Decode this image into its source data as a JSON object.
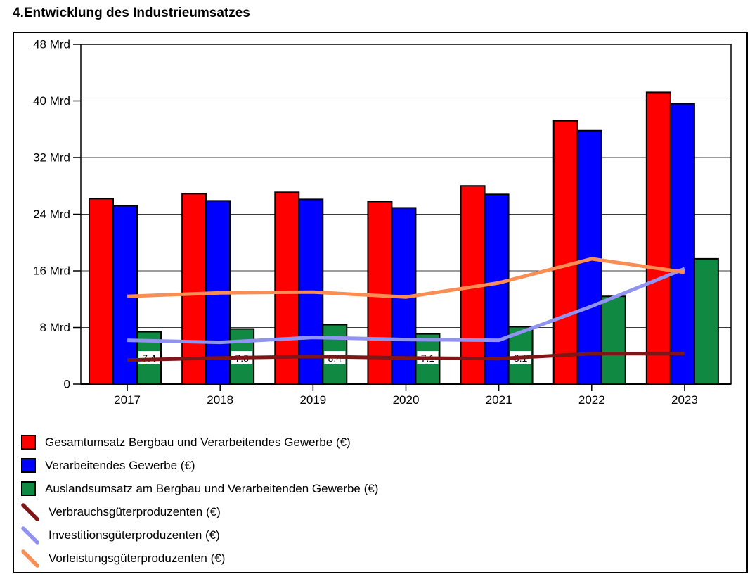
{
  "page_title": "4.Entwicklung des Industrieumsatzes",
  "chart_data": {
    "type": "bar",
    "subtype": "grouped-bars-with-line-overlays",
    "title": "4.Entwicklung des Industrieumsatzes",
    "xlabel": "",
    "ylabel": "",
    "unit": "Mrd",
    "categories": [
      "2017",
      "2018",
      "2019",
      "2020",
      "2021",
      "2022",
      "2023"
    ],
    "ylim": [
      0,
      48
    ],
    "ytick_step": 8,
    "ytick_labels": [
      "0",
      "8 Mrd",
      "16 Mrd",
      "24 Mrd",
      "32 Mrd",
      "40 Mrd",
      "48 Mrd"
    ],
    "grid": true,
    "legend_position": "bottom-left",
    "series": [
      {
        "name": "Gesamtumsatz Bergbau und Verarbeitendes Gewerbe (€)",
        "type": "bar",
        "color": "#FF0000",
        "values": [
          26.2,
          26.9,
          27.1,
          25.8,
          28.0,
          37.2,
          41.2
        ]
      },
      {
        "name": "Verarbeitendes Gewerbe (€)",
        "type": "bar",
        "color": "#0000FF",
        "values": [
          25.2,
          25.9,
          26.1,
          24.9,
          26.8,
          35.8,
          39.6
        ]
      },
      {
        "name": "Auslandsumsatz am Bergbau und Verarbeitenden Gewerbe (€)",
        "type": "bar",
        "color": "#108A42",
        "values": [
          7.4,
          7.8,
          8.4,
          7.1,
          8.1,
          12.4,
          17.7
        ],
        "data_labels": [
          "7.4",
          "7.8",
          "8.4",
          "7.1",
          "8.1",
          "",
          ""
        ]
      },
      {
        "name": "Verbrauchsgüterproduzenten (€)",
        "type": "line",
        "color": "#7E1517",
        "values": [
          3.4,
          3.7,
          3.9,
          3.7,
          3.6,
          4.3,
          4.3
        ]
      },
      {
        "name": "Investitionsgüterproduzenten (€)",
        "type": "line",
        "color": "#9193F2",
        "values": [
          6.2,
          5.9,
          6.6,
          6.3,
          6.2,
          11.0,
          16.3
        ]
      },
      {
        "name": "Vorleistungsgüterproduzenten (€)",
        "type": "line",
        "color": "#F98D53",
        "values": [
          12.4,
          12.9,
          13.0,
          12.3,
          14.3,
          17.7,
          15.8
        ]
      }
    ],
    "colors": {
      "grid": "#3A3A3A",
      "axis": "#000000",
      "bar_border": "#000000",
      "label_text": "#000000",
      "label_bg": "#FFFFFF"
    }
  }
}
